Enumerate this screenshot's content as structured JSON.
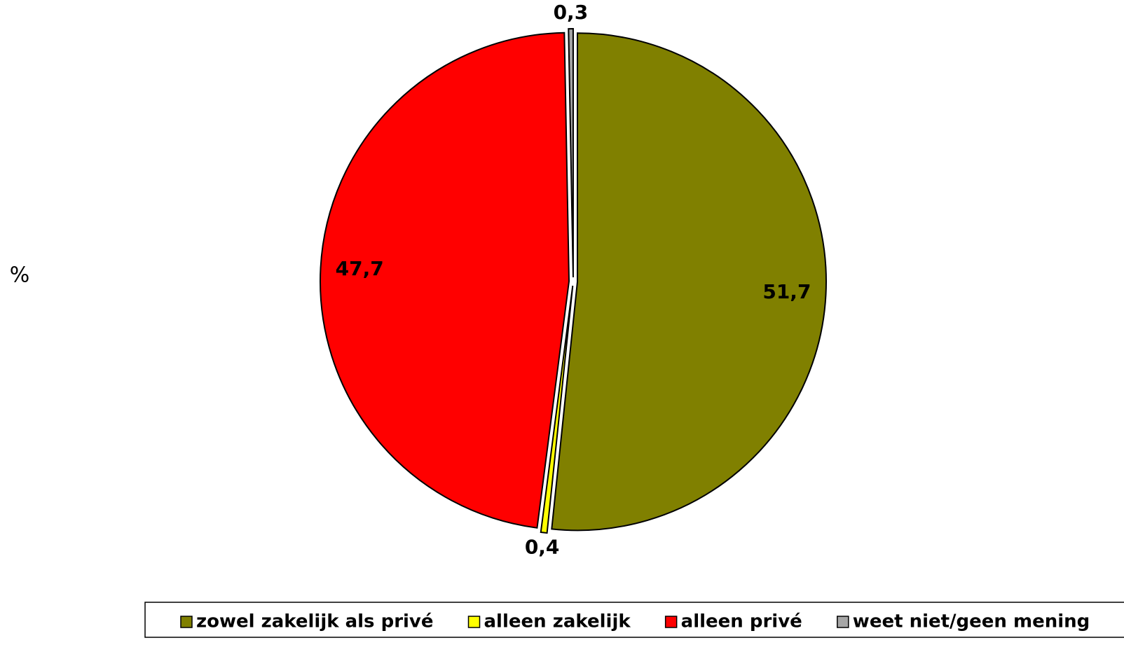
{
  "chart_data": {
    "type": "pie",
    "y_label": "%",
    "categories": [
      "zowel zakelijk als privé",
      "alleen zakelijk",
      "alleen privé",
      "weet niet/geen mening"
    ],
    "values": [
      51.7,
      0.4,
      47.7,
      0.3
    ],
    "value_labels": [
      "51,7",
      "0,4",
      "47,7",
      "0,3"
    ],
    "colors": [
      "#808000",
      "#ffff00",
      "#ff0000",
      "#a6a6a6"
    ],
    "legend": "bottom"
  }
}
